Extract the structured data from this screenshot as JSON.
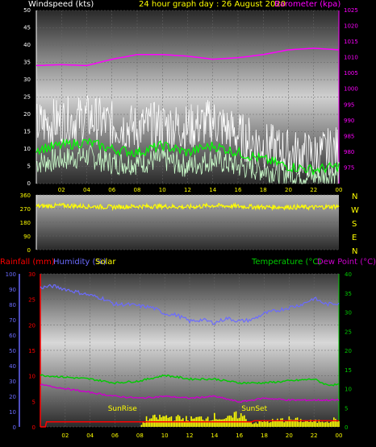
{
  "header": {
    "left_title": "Windspeed (kts)",
    "center_title": "24 hour graph day : 26 August 2020",
    "right_title": "Barometer (kpa)"
  },
  "colors": {
    "windspeed_title": "#ffffff",
    "center_title": "#ffff00",
    "barometer": "#ff00ff",
    "gust": "#ffffff",
    "wind_avg": "#00ff00",
    "wind_speed": "#ccffcc",
    "direction": "#ffff00",
    "rain": "#ff0000",
    "humidity": "#6b6bff",
    "solar": "#ffff00",
    "temperature": "#00cc00",
    "dewpoint": "#cc00cc",
    "axis_yellow": "#ffff00",
    "cardinal": "#ffff00"
  },
  "cardinal_labels": [
    "N",
    "W",
    "S",
    "E",
    "N"
  ],
  "chart_data": [
    {
      "type": "line",
      "name_display": "wind",
      "x_ticks": [
        "02",
        "04",
        "06",
        "08",
        "10",
        "12",
        "14",
        "16",
        "18",
        "20",
        "22",
        "00"
      ],
      "left_axis": {
        "label": "Windspeed (kts)",
        "ylim": [
          0,
          50
        ],
        "ticks": [
          0,
          5,
          10,
          15,
          20,
          25,
          30,
          35,
          40,
          45,
          50
        ]
      },
      "right_axis": {
        "label": "Barometer (kpa)",
        "ylim": [
          970,
          1025
        ],
        "ticks": [
          975,
          980,
          985,
          990,
          995,
          1000,
          1005,
          1010,
          1015,
          1020,
          1025
        ]
      },
      "series": [
        {
          "key": "barometer",
          "axis": "right",
          "x": [
            0,
            2,
            4,
            6,
            8,
            10,
            12,
            14,
            16,
            18,
            20,
            22,
            24
          ],
          "values": [
            1007.5,
            1007.8,
            1007.5,
            1009.5,
            1011,
            1011,
            1010.5,
            1009.5,
            1010,
            1011,
            1012.5,
            1013,
            1012.5
          ]
        },
        {
          "key": "gust",
          "axis": "left",
          "x": [
            0,
            2,
            4,
            6,
            8,
            10,
            12,
            14,
            16,
            18,
            20,
            22,
            24
          ],
          "values": [
            17,
            18,
            19,
            17,
            16,
            17,
            16,
            18,
            14,
            11,
            9,
            8,
            10
          ]
        },
        {
          "key": "wind_avg",
          "axis": "left",
          "x": [
            0,
            2,
            4,
            6,
            8,
            10,
            12,
            14,
            16,
            18,
            20,
            22,
            24
          ],
          "values": [
            10,
            11,
            12,
            10,
            9,
            11,
            9,
            11,
            9,
            7,
            5,
            4,
            5
          ]
        },
        {
          "key": "wind_speed",
          "axis": "left",
          "x": [
            0,
            2,
            4,
            6,
            8,
            10,
            12,
            14,
            16,
            18,
            20,
            22,
            24
          ],
          "values": [
            6,
            7,
            8,
            6,
            6,
            7,
            5,
            7,
            5,
            4,
            3,
            2,
            3
          ]
        }
      ]
    },
    {
      "type": "line",
      "name_display": "direction",
      "y_ticks": [
        0,
        90,
        180,
        270,
        360
      ],
      "ylim": [
        0,
        360
      ],
      "series": [
        {
          "key": "direction",
          "x": [
            0,
            2,
            4,
            6,
            8,
            10,
            12,
            14,
            16,
            18,
            20,
            22,
            24
          ],
          "values": [
            285,
            290,
            285,
            280,
            285,
            285,
            280,
            290,
            285,
            280,
            280,
            278,
            285
          ]
        }
      ]
    },
    {
      "type": "line",
      "name_display": "environment",
      "header": {
        "rainfall": "Rainfall (mm)",
        "humidity": "Humidity (%)",
        "solar": "Solar",
        "temperature": "Temperature (°C)",
        "dewpoint": "Dew Point (°C)"
      },
      "left_axis_humidity": {
        "ylim": [
          0,
          100
        ],
        "ticks": [
          0,
          10,
          20,
          30,
          40,
          50,
          60,
          70,
          80,
          90,
          100
        ]
      },
      "left_axis_rain": {
        "ylim": [
          0,
          30
        ],
        "ticks": [
          0,
          5,
          10,
          15,
          20,
          25,
          30
        ]
      },
      "right_axis_temp": {
        "ylim": [
          0,
          40
        ],
        "ticks": [
          0,
          5,
          10,
          15,
          20,
          25,
          30,
          35,
          40
        ]
      },
      "x_ticks": [
        "02",
        "04",
        "06",
        "08",
        "10",
        "12",
        "14",
        "16",
        "18",
        "20",
        "22",
        "00"
      ],
      "annotations": [
        "SunRise",
        "SunSet"
      ],
      "series": [
        {
          "key": "humidity",
          "axis": "humidity",
          "x": [
            0,
            1,
            2,
            3,
            4,
            5,
            6,
            7,
            8,
            9,
            10,
            11,
            12,
            13,
            14,
            15,
            16,
            17,
            18,
            19,
            20,
            21,
            22,
            23,
            24
          ],
          "values": [
            91,
            92,
            90,
            88,
            86,
            84,
            80,
            80,
            79,
            78,
            74,
            73,
            69,
            70,
            68,
            71,
            69,
            70,
            74,
            76,
            78,
            80,
            84,
            80,
            81
          ]
        },
        {
          "key": "temperature",
          "axis": "temp",
          "x": [
            0,
            2,
            4,
            6,
            8,
            10,
            12,
            14,
            16,
            18,
            20,
            22,
            23,
            24
          ],
          "values": [
            13.5,
            13,
            12.5,
            11.5,
            12,
            13.5,
            12.5,
            12.5,
            11.5,
            11.5,
            12,
            12.5,
            11,
            11
          ]
        },
        {
          "key": "dewpoint",
          "axis": "temp",
          "x": [
            0,
            2,
            4,
            6,
            8,
            10,
            12,
            14,
            16,
            18,
            20,
            22,
            24
          ],
          "values": [
            11,
            10,
            9,
            8,
            7.5,
            8,
            7.5,
            8,
            6.5,
            7.5,
            7,
            7,
            7
          ]
        },
        {
          "key": "rain",
          "axis": "rain",
          "x": [
            0,
            0.4,
            0.5,
            2,
            6,
            10,
            14,
            17,
            17.2,
            24
          ],
          "values": [
            0,
            0,
            1,
            1,
            1,
            1,
            1,
            1,
            1.2,
            1.2
          ]
        },
        {
          "key": "solar",
          "axis": "rain",
          "x": [
            0,
            8,
            8.5,
            10,
            12,
            14,
            15,
            16,
            17,
            18,
            20,
            22,
            24
          ],
          "values": [
            0,
            0,
            1.5,
            2,
            1.5,
            2,
            1.5,
            2.5,
            0.8,
            1,
            1.5,
            1,
            1.5
          ]
        }
      ]
    }
  ]
}
